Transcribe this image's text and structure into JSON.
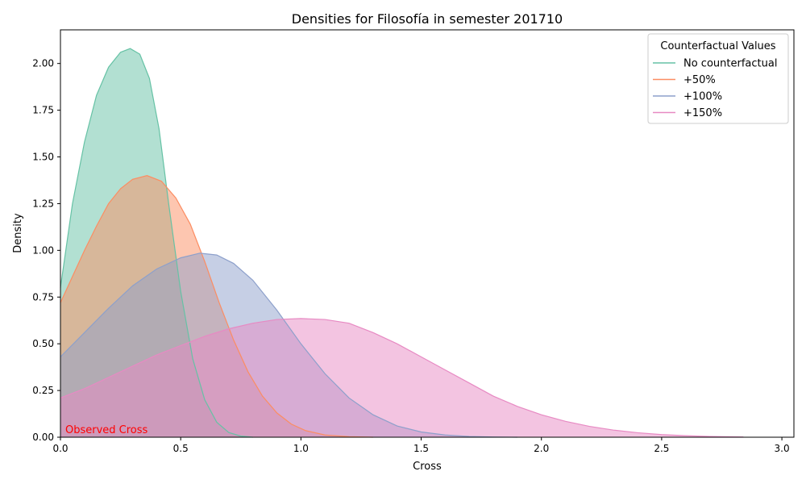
{
  "chart_data": {
    "type": "area",
    "title": "Densities for Filosofía in semester 201710",
    "xlabel": "Cross",
    "ylabel": "Density",
    "xlim": [
      0,
      3.05
    ],
    "ylim": [
      0,
      2.18
    ],
    "x_ticks": [
      0.0,
      0.5,
      1.0,
      1.5,
      2.0,
      2.5,
      3.0
    ],
    "x_tick_labels": [
      "0.0",
      "0.5",
      "1.0",
      "1.5",
      "2.0",
      "2.5",
      "3.0"
    ],
    "y_ticks": [
      0.0,
      0.25,
      0.5,
      0.75,
      1.0,
      1.25,
      1.5,
      1.75,
      2.0
    ],
    "y_tick_labels": [
      "0.00",
      "0.25",
      "0.50",
      "0.75",
      "1.00",
      "1.25",
      "1.50",
      "1.75",
      "2.00"
    ],
    "grid": false,
    "legend": {
      "title": "Counterfactual Values",
      "placement": "top-right"
    },
    "annotation": {
      "text": "Observed Cross",
      "x": 0.0,
      "y": 0.0,
      "color": "#ff0000"
    },
    "series": [
      {
        "name": "No counterfactual",
        "color": "#66c2a5",
        "points": [
          [
            0.0,
            0.8
          ],
          [
            0.05,
            1.25
          ],
          [
            0.1,
            1.58
          ],
          [
            0.15,
            1.83
          ],
          [
            0.2,
            1.98
          ],
          [
            0.25,
            2.06
          ],
          [
            0.29,
            2.08
          ],
          [
            0.33,
            2.05
          ],
          [
            0.37,
            1.92
          ],
          [
            0.41,
            1.65
          ],
          [
            0.45,
            1.25
          ],
          [
            0.5,
            0.78
          ],
          [
            0.55,
            0.42
          ],
          [
            0.6,
            0.2
          ],
          [
            0.65,
            0.08
          ],
          [
            0.7,
            0.025
          ],
          [
            0.75,
            0.006
          ],
          [
            0.8,
            0.0
          ]
        ]
      },
      {
        "name": "+50%",
        "color": "#fc8d62",
        "points": [
          [
            0.0,
            0.72
          ],
          [
            0.05,
            0.86
          ],
          [
            0.1,
            1.0
          ],
          [
            0.15,
            1.13
          ],
          [
            0.2,
            1.25
          ],
          [
            0.25,
            1.33
          ],
          [
            0.3,
            1.38
          ],
          [
            0.36,
            1.4
          ],
          [
            0.42,
            1.37
          ],
          [
            0.48,
            1.28
          ],
          [
            0.54,
            1.14
          ],
          [
            0.6,
            0.94
          ],
          [
            0.66,
            0.72
          ],
          [
            0.72,
            0.52
          ],
          [
            0.78,
            0.35
          ],
          [
            0.84,
            0.22
          ],
          [
            0.9,
            0.13
          ],
          [
            0.96,
            0.07
          ],
          [
            1.02,
            0.035
          ],
          [
            1.1,
            0.012
          ],
          [
            1.2,
            0.003
          ],
          [
            1.3,
            0.0
          ]
        ]
      },
      {
        "name": "+100%",
        "color": "#8da0cb",
        "points": [
          [
            0.0,
            0.43
          ],
          [
            0.1,
            0.56
          ],
          [
            0.2,
            0.69
          ],
          [
            0.3,
            0.81
          ],
          [
            0.4,
            0.9
          ],
          [
            0.5,
            0.96
          ],
          [
            0.58,
            0.985
          ],
          [
            0.65,
            0.975
          ],
          [
            0.72,
            0.93
          ],
          [
            0.8,
            0.84
          ],
          [
            0.9,
            0.68
          ],
          [
            1.0,
            0.5
          ],
          [
            1.1,
            0.34
          ],
          [
            1.2,
            0.21
          ],
          [
            1.3,
            0.12
          ],
          [
            1.4,
            0.06
          ],
          [
            1.5,
            0.028
          ],
          [
            1.6,
            0.012
          ],
          [
            1.7,
            0.004
          ],
          [
            1.8,
            0.001
          ],
          [
            1.9,
            0.0
          ]
        ]
      },
      {
        "name": "+150%",
        "color": "#e78ac3",
        "points": [
          [
            0.0,
            0.21
          ],
          [
            0.1,
            0.26
          ],
          [
            0.2,
            0.32
          ],
          [
            0.3,
            0.38
          ],
          [
            0.4,
            0.44
          ],
          [
            0.5,
            0.49
          ],
          [
            0.6,
            0.54
          ],
          [
            0.7,
            0.58
          ],
          [
            0.8,
            0.61
          ],
          [
            0.9,
            0.63
          ],
          [
            1.0,
            0.635
          ],
          [
            1.1,
            0.63
          ],
          [
            1.2,
            0.61
          ],
          [
            1.3,
            0.56
          ],
          [
            1.4,
            0.5
          ],
          [
            1.5,
            0.43
          ],
          [
            1.6,
            0.36
          ],
          [
            1.7,
            0.29
          ],
          [
            1.8,
            0.22
          ],
          [
            1.9,
            0.165
          ],
          [
            2.0,
            0.12
          ],
          [
            2.1,
            0.085
          ],
          [
            2.2,
            0.058
          ],
          [
            2.3,
            0.038
          ],
          [
            2.4,
            0.024
          ],
          [
            2.5,
            0.014
          ],
          [
            2.6,
            0.008
          ],
          [
            2.7,
            0.004
          ],
          [
            2.84,
            0.001
          ]
        ]
      }
    ]
  }
}
